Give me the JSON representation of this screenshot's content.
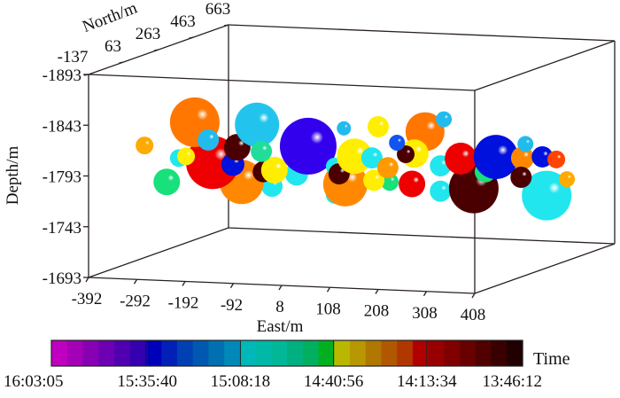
{
  "chart_data": {
    "type": "scatter",
    "subtype": "3d-bubble",
    "xlabel": "East/m",
    "ylabel": "North/m",
    "zlabel": "Depth/m",
    "xlim": [
      -392,
      408
    ],
    "ylim": [
      -137,
      663
    ],
    "zlim": [
      -1893,
      -1693
    ],
    "x_ticks": [
      "-392",
      "-292",
      "-192",
      "-92",
      "8",
      "108",
      "208",
      "308",
      "408"
    ],
    "y_ticks": [
      "-137",
      "63",
      "263",
      "463",
      "663"
    ],
    "z_ticks": [
      "-1693",
      "-1743",
      "-1793",
      "-1843",
      "-1893"
    ],
    "colorbar": {
      "label": "Time",
      "tick_labels": [
        "16:03:05",
        "15:35:40",
        "15:08:18",
        "14:40:56",
        "14:13:34",
        "13:46:12"
      ],
      "colors": [
        "#c000c0",
        "#a400b8",
        "#8800b4",
        "#6c00b2",
        "#5000b0",
        "#3400b0",
        "#0000b8",
        "#0020b8",
        "#0040b2",
        "#0058b0",
        "#0070b0",
        "#0088b8",
        "#00b8b8",
        "#00b8a8",
        "#00b898",
        "#00b080",
        "#00b060",
        "#00b020",
        "#b8b800",
        "#b89800",
        "#b07800",
        "#b05800",
        "#b03800",
        "#b00000",
        "#980000",
        "#800000",
        "#680000",
        "#500000",
        "#380000",
        "#200000"
      ]
    },
    "points": [
      {
        "east": -375,
        "north": 263,
        "depth": -1763,
        "magnitude": 1.5,
        "color": "#18e07a"
      },
      {
        "east": -421,
        "north": 263,
        "depth": -1798,
        "magnitude": 1.0,
        "color": "#ffaa00"
      },
      {
        "east": -350,
        "north": 263,
        "depth": -1787,
        "magnitude": 1.0,
        "color": "#22e6ee"
      },
      {
        "east": -157,
        "north": 263,
        "depth": -1763,
        "magnitude": 1.2,
        "color": "#22e6ee"
      },
      {
        "east": -27,
        "north": 263,
        "depth": -1757,
        "magnitude": 1.0,
        "color": "#22e6ee"
      },
      {
        "east": -220,
        "north": 263,
        "depth": -1766,
        "magnitude": 2.5,
        "color": "#ff8800"
      },
      {
        "east": -280,
        "north": 263,
        "depth": -1784,
        "magnitude": 3.0,
        "color": "#ee0000"
      },
      {
        "east": -317,
        "north": 263,
        "depth": -1823,
        "magnitude": 2.8,
        "color": "#ff7700"
      },
      {
        "east": -238,
        "north": 263,
        "depth": -1783,
        "magnitude": 1.3,
        "color": "#0010dd"
      },
      {
        "east": -335,
        "north": 263,
        "depth": -1789,
        "magnitude": 1.0,
        "color": "#ffee00"
      },
      {
        "east": -289,
        "north": 263,
        "depth": -1806,
        "magnitude": 1.2,
        "color": "#22bbee"
      },
      {
        "east": -229,
        "north": 263,
        "depth": -1800,
        "magnitude": 1.5,
        "color": "#4a0000"
      },
      {
        "east": -188,
        "north": 263,
        "depth": -1823,
        "magnitude": 2.5,
        "color": "#22c4ee"
      },
      {
        "east": -175,
        "north": 263,
        "depth": -1777,
        "magnitude": 1.2,
        "color": "#4a0000"
      },
      {
        "east": -106,
        "north": 263,
        "depth": -1776,
        "magnitude": 1.3,
        "color": "#22e6ee"
      },
      {
        "east": -152,
        "north": 263,
        "depth": -1779,
        "magnitude": 1.5,
        "color": "#ffee00"
      },
      {
        "east": -179,
        "north": 263,
        "depth": -1797,
        "magnitude": 1.2,
        "color": "#22dd99"
      },
      {
        "east": -5,
        "north": 263,
        "depth": -1768,
        "magnitude": 2.5,
        "color": "#ff8800"
      },
      {
        "east": -82,
        "north": 263,
        "depth": -1804,
        "magnitude": 3.2,
        "color": "#3300ee"
      },
      {
        "east": -27,
        "north": 263,
        "depth": -1785,
        "magnitude": 1.0,
        "color": "#22e6ee"
      },
      {
        "east": -18,
        "north": 263,
        "depth": -1778,
        "magnitude": 1.2,
        "color": "#4a0000"
      },
      {
        "east": 14,
        "north": 263,
        "depth": -1796,
        "magnitude": 2.0,
        "color": "#ffee00"
      },
      {
        "east": 50,
        "north": 263,
        "depth": -1795,
        "magnitude": 1.2,
        "color": "#22e6ee"
      },
      {
        "east": 87,
        "north": 263,
        "depth": -1772,
        "magnitude": 1.0,
        "color": "#18e07a"
      },
      {
        "east": 54,
        "north": 263,
        "depth": -1773,
        "magnitude": 1.2,
        "color": "#ffee00"
      },
      {
        "east": 83,
        "north": 263,
        "depth": -1786,
        "magnitude": 1.2,
        "color": "#ff9900"
      },
      {
        "east": 63,
        "north": 263,
        "depth": -1826,
        "magnitude": 1.2,
        "color": "#ffee00"
      },
      {
        "east": 133,
        "north": 263,
        "depth": -1771,
        "magnitude": 1.5,
        "color": "#ee0000"
      },
      {
        "east": 192,
        "north": 263,
        "depth": -1765,
        "magnitude": 1.2,
        "color": "#22e6ee"
      },
      {
        "east": 192,
        "north": 263,
        "depth": -1790,
        "magnitude": 1.2,
        "color": "#22e6ee"
      },
      {
        "east": 160,
        "north": 263,
        "depth": -1823,
        "magnitude": 2.2,
        "color": "#ff7700"
      },
      {
        "east": 138,
        "north": 263,
        "depth": -1801,
        "magnitude": 1.6,
        "color": "#ffee00"
      },
      {
        "east": 120,
        "north": 263,
        "depth": -1800,
        "magnitude": 1.0,
        "color": "#4a0000"
      },
      {
        "east": -8,
        "north": 263,
        "depth": -1823,
        "magnitude": 0.8,
        "color": "#22bbee"
      },
      {
        "east": 102,
        "north": 263,
        "depth": -1811,
        "magnitude": 0.9,
        "color": "#1155ee"
      },
      {
        "east": 199,
        "north": 263,
        "depth": -1836,
        "magnitude": 0.9,
        "color": "#22bbee"
      },
      {
        "east": 261,
        "north": 263,
        "depth": -1769,
        "magnitude": 2.8,
        "color": "#4a0000"
      },
      {
        "east": 234,
        "north": 263,
        "depth": -1798,
        "magnitude": 1.8,
        "color": "#ee0000"
      },
      {
        "east": 285,
        "north": 263,
        "depth": -1786,
        "magnitude": 1.2,
        "color": "#18e07a"
      },
      {
        "east": 307,
        "north": 263,
        "depth": -1801,
        "magnitude": 2.5,
        "color": "#0010dd"
      },
      {
        "east": 412,
        "north": 263,
        "depth": -1765,
        "magnitude": 2.8,
        "color": "#22e6ee"
      },
      {
        "east": 362,
        "north": 263,
        "depth": -1801,
        "magnitude": 1.3,
        "color": "#ff8800"
      },
      {
        "east": 359,
        "north": 263,
        "depth": -1782,
        "magnitude": 1.2,
        "color": "#4a0000"
      },
      {
        "east": 403,
        "north": 263,
        "depth": -1803,
        "magnitude": 1.2,
        "color": "#0010dd"
      },
      {
        "east": 432,
        "north": 263,
        "depth": -1801,
        "magnitude": 1.0,
        "color": "#ff4400"
      },
      {
        "east": 454,
        "north": 263,
        "depth": -1782,
        "magnitude": 0.9,
        "color": "#ffaa00"
      },
      {
        "east": 368,
        "north": 263,
        "depth": -1815,
        "magnitude": 0.9,
        "color": "#22bbee"
      }
    ]
  }
}
